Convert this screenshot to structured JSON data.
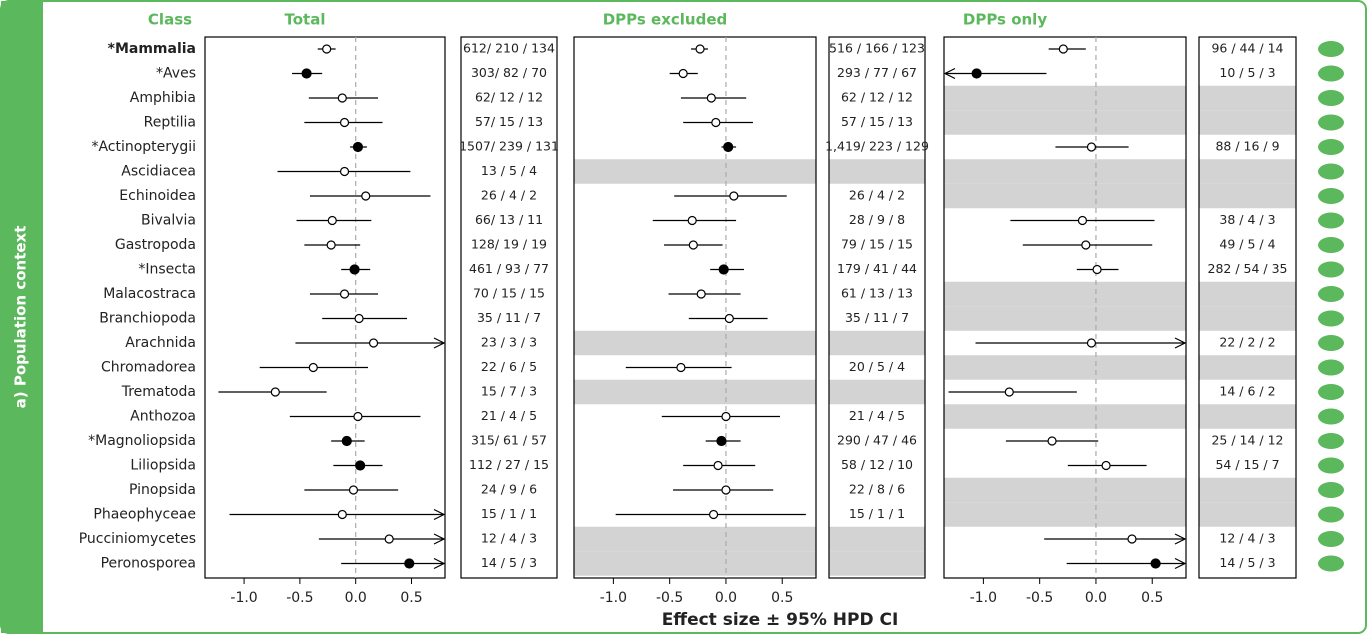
{
  "chart_data": {
    "type": "forest",
    "y_label": "a) Population context",
    "category_header": "Class",
    "x_label": "Effect size ± 95% HPD CI",
    "categories": [
      "*Mammalia",
      "*Aves",
      "Amphibia",
      "Reptilia",
      "*Actinopterygii",
      "Ascidiacea",
      "Echinoidea",
      "Bivalvia",
      "Gastropoda",
      "*Insecta",
      "Malacostraca",
      "Branchiopoda",
      "Arachnida",
      "Chromadorea",
      "Trematoda",
      "Anthozoa",
      "*Magnoliopsida",
      "Liliopsida",
      "Pinopsida",
      "Phaeophyceae",
      "Pucciniomycetes",
      "Peronosporea"
    ],
    "xlim": [
      -1.35,
      0.8
    ],
    "xticks": [
      {
        "value": -1,
        "label": "-1.0"
      },
      {
        "value": -0.5,
        "label": "-0.5"
      },
      {
        "value": 0,
        "label": "0.0"
      },
      {
        "value": 0.5,
        "label": "0.5"
      }
    ],
    "reference_line": 0,
    "color": "#000000",
    "accent_color": "#5cb85c",
    "missing_color": "#d3d3d3",
    "panels": [
      {
        "title": "Total",
        "estimates": [
          -0.26,
          -0.44,
          -0.12,
          -0.1,
          0.02,
          -0.1,
          0.09,
          -0.21,
          -0.22,
          -0.01,
          -0.1,
          0.03,
          0.16,
          -0.38,
          -0.72,
          0.02,
          -0.08,
          0.04,
          -0.02,
          -0.12,
          0.3,
          0.48
        ],
        "lower": [
          -0.34,
          -0.57,
          -0.42,
          -0.46,
          -0.05,
          -0.7,
          -0.41,
          -0.53,
          -0.46,
          -0.13,
          -0.41,
          -0.3,
          -0.54,
          -0.86,
          -1.23,
          -0.59,
          -0.22,
          -0.2,
          -0.46,
          -1.13,
          -0.33,
          -0.13
        ],
        "upper": [
          -0.18,
          -0.3,
          0.2,
          0.24,
          0.1,
          0.49,
          0.67,
          0.14,
          0.04,
          0.13,
          0.2,
          0.46,
          0.9,
          0.11,
          -0.26,
          0.58,
          0.08,
          0.24,
          0.38,
          0.9,
          0.9,
          0.9
        ],
        "filled": [
          false,
          true,
          false,
          false,
          true,
          false,
          false,
          false,
          false,
          true,
          false,
          false,
          false,
          false,
          false,
          false,
          true,
          true,
          false,
          false,
          false,
          true
        ],
        "counts": [
          "612/ 210 / 134",
          "303/ 82 / 70",
          "62/ 12 / 12",
          "57/ 15 / 13",
          "1507/ 239 / 131",
          "13 / 5 / 4",
          "26 / 4 / 2",
          "66/ 13 / 11",
          "128/ 19 / 19",
          "461 / 93 / 77",
          "70 / 15 / 15",
          "35 / 11 / 7",
          "23 / 3 / 3",
          "22 / 6 / 5",
          "15 / 7 / 3",
          "21 / 4 / 5",
          "315/ 61 / 57",
          "112 / 27 / 15",
          "24 / 9 / 6",
          "15 / 1 / 1",
          "12 / 4 / 3",
          "14 / 5 / 3"
        ]
      },
      {
        "title": "DPPs excluded",
        "estimates": [
          -0.23,
          -0.38,
          -0.13,
          -0.09,
          0.02,
          null,
          0.07,
          -0.3,
          -0.29,
          -0.02,
          -0.22,
          0.03,
          null,
          -0.4,
          null,
          0.0,
          -0.04,
          -0.07,
          0.0,
          -0.11,
          null,
          null
        ],
        "lower": [
          -0.31,
          -0.5,
          -0.4,
          -0.38,
          -0.04,
          null,
          -0.46,
          -0.65,
          -0.55,
          -0.14,
          -0.51,
          -0.33,
          null,
          -0.89,
          null,
          -0.57,
          -0.18,
          -0.38,
          -0.47,
          -0.98,
          null,
          null
        ],
        "upper": [
          -0.16,
          -0.25,
          0.18,
          0.24,
          0.09,
          null,
          0.54,
          0.09,
          -0.03,
          0.16,
          0.13,
          0.37,
          null,
          0.05,
          null,
          0.48,
          0.13,
          0.26,
          0.42,
          0.71,
          null,
          null
        ],
        "filled": [
          false,
          false,
          false,
          false,
          true,
          false,
          false,
          false,
          false,
          true,
          false,
          false,
          false,
          false,
          false,
          false,
          true,
          false,
          false,
          false,
          false,
          false
        ],
        "counts": [
          "516 / 166 / 123",
          "293 / 77 / 67",
          "62 / 12 / 12",
          "57 / 15 / 13",
          "1,419/ 223 / 129",
          null,
          "26 / 4 / 2",
          "28 / 9 / 8",
          "79 / 15 / 15",
          "179 / 41 / 44",
          "61 / 13 / 13",
          "35 / 11 / 7",
          null,
          "20 / 5 / 4",
          null,
          "21 / 4 / 5",
          "290 / 47 / 46",
          "58 / 12 / 10",
          "22 / 8 / 6",
          "15 / 1 / 1",
          null,
          null
        ]
      },
      {
        "title": "DPPs only",
        "estimates": [
          -0.29,
          -1.06,
          null,
          null,
          -0.04,
          null,
          null,
          -0.12,
          -0.09,
          0.01,
          null,
          null,
          -0.04,
          null,
          -0.77,
          null,
          -0.39,
          0.09,
          null,
          null,
          0.32,
          0.53
        ],
        "lower": [
          -0.42,
          -1.5,
          null,
          null,
          -0.36,
          null,
          null,
          -0.76,
          -0.65,
          -0.17,
          null,
          null,
          -1.07,
          null,
          -1.31,
          null,
          -0.8,
          -0.25,
          null,
          null,
          -0.46,
          -0.26
        ],
        "upper": [
          -0.09,
          -0.44,
          null,
          null,
          0.29,
          null,
          null,
          0.52,
          0.5,
          0.2,
          null,
          null,
          0.9,
          null,
          -0.17,
          null,
          0.02,
          0.45,
          null,
          null,
          0.9,
          0.9
        ],
        "filled": [
          false,
          true,
          false,
          false,
          false,
          false,
          false,
          false,
          false,
          false,
          false,
          false,
          false,
          false,
          false,
          false,
          false,
          false,
          false,
          false,
          false,
          true
        ],
        "counts": [
          "96 / 44 / 14",
          "10 / 5 / 3",
          null,
          null,
          "88 / 16 / 9",
          null,
          null,
          "38 / 4 / 3",
          "49 / 5 / 4",
          "282 / 54 / 35",
          null,
          null,
          "22 / 2 / 2",
          null,
          "14 / 6 / 2",
          null,
          "25 / 14 / 12",
          "54 / 15 / 7",
          null,
          null,
          "12 / 4 / 3",
          "14 / 5 / 3"
        ]
      }
    ]
  }
}
